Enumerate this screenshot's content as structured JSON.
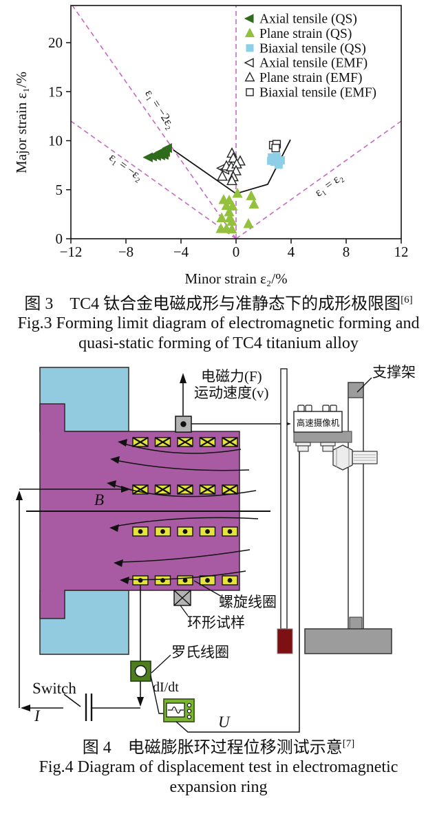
{
  "fig3": {
    "chart_data": {
      "type": "scatter",
      "title": "",
      "xlabel": "Minor strain ε₂/%",
      "ylabel": "Major strain ε₁/%",
      "xlim": [
        -12,
        12
      ],
      "ylim": [
        0,
        23.8
      ],
      "xticks": [
        -12,
        -8,
        -4,
        0,
        4,
        8,
        12
      ],
      "yticks": [
        0,
        5,
        10,
        15,
        20
      ],
      "grid": false,
      "legend_position": "top-right",
      "guide_color": "#c468c0",
      "line_color": "#111111",
      "flc_line": [
        [
          -4.55,
          9.05
        ],
        [
          0,
          4.6
        ],
        [
          2.3,
          5.55
        ],
        [
          3.95,
          10.1
        ]
      ],
      "guide_lines": [
        {
          "from": [
            0,
            0
          ],
          "to": [
            -11.9,
            23.8
          ]
        },
        {
          "from": [
            0,
            0
          ],
          "to": [
            -12,
            12
          ]
        },
        {
          "from": [
            0,
            0
          ],
          "to": [
            0,
            23.8
          ]
        },
        {
          "from": [
            0,
            0
          ],
          "to": [
            12,
            12
          ]
        }
      ],
      "annotations": [
        {
          "text": "ε₁ = −2ε₂",
          "x": -5.75,
          "y": 13.0,
          "rot": 57
        },
        {
          "text": "ε₁ = −ε₂",
          "x": -8.15,
          "y": 7.0,
          "rot": 36
        },
        {
          "text": "ε₁ = ε₂",
          "x": 6.9,
          "y": 5.2,
          "rot": -36
        }
      ],
      "series": [
        {
          "name": "Axial tensile (QS)",
          "marker": "tri-left",
          "fill": "#2f6b1d",
          "open": false,
          "points": [
            [
              -6.35,
              8.3
            ],
            [
              -6.05,
              8.4
            ],
            [
              -5.75,
              8.45
            ],
            [
              -5.45,
              8.5
            ],
            [
              -5.2,
              8.55
            ],
            [
              -5.45,
              8.85
            ],
            [
              -5.1,
              8.85
            ],
            [
              -5.15,
              9.0
            ],
            [
              -4.95,
              9.25
            ]
          ]
        },
        {
          "name": "Plane strain (QS)",
          "marker": "tri-up",
          "fill": "#94c13d",
          "open": false,
          "points": [
            [
              0.1,
              4.6
            ],
            [
              -0.9,
              3.95
            ],
            [
              -0.5,
              3.9
            ],
            [
              -0.7,
              3.35
            ],
            [
              -0.25,
              3.3
            ],
            [
              -0.5,
              2.7
            ],
            [
              -1.05,
              2.1
            ],
            [
              -0.45,
              2.1
            ],
            [
              -0.3,
              1.75
            ],
            [
              -1.1,
              1.0
            ],
            [
              -0.7,
              1.0
            ],
            [
              -0.3,
              0.95
            ],
            [
              1.3,
              3.5
            ],
            [
              0.9,
              1.5
            ],
            [
              1.1,
              4.35
            ]
          ]
        },
        {
          "name": "Biaxial tensile (QS)",
          "marker": "square",
          "fill": "#8ecfe8",
          "open": false,
          "points": [
            [
              2.6,
              8.3
            ],
            [
              2.95,
              8.35
            ],
            [
              3.25,
              8.0
            ],
            [
              2.8,
              7.85
            ],
            [
              3.1,
              7.55
            ],
            [
              2.55,
              7.95
            ]
          ]
        },
        {
          "name": "Axial tensile (EMF)",
          "marker": "tri-left",
          "fill": "#ffffff",
          "open": true,
          "points": [
            [
              -1.0,
              7.2
            ],
            [
              -0.8,
              7.05
            ]
          ]
        },
        {
          "name": "Plane strain (EMF)",
          "marker": "tri-up",
          "fill": "#ffffff",
          "open": true,
          "points": [
            [
              -0.3,
              8.7
            ],
            [
              -0.2,
              8.2
            ],
            [
              0.3,
              7.9
            ],
            [
              -0.7,
              7.4
            ],
            [
              -0.35,
              7.3
            ],
            [
              0.05,
              7.6
            ],
            [
              0.0,
              6.9
            ],
            [
              -1.0,
              6.35
            ],
            [
              -0.2,
              6.3
            ],
            [
              -0.3,
              5.9
            ]
          ]
        },
        {
          "name": "Biaxial tensile (EMF)",
          "marker": "square",
          "fill": "#ffffff",
          "open": true,
          "points": [
            [
              2.7,
              9.55
            ],
            [
              2.95,
              9.65
            ],
            [
              2.88,
              9.25
            ]
          ]
        }
      ]
    },
    "caption_zh": "图 3　TC4 钛合金电磁成形与准静态下的成形极限图",
    "caption_zh_sup": "[6]",
    "caption_en_1": "Fig.3 Forming limit diagram of electromagnetic forming and",
    "caption_en_2": "quasi-static forming of TC4 titanium alloy"
  },
  "fig4": {
    "labels": {
      "force": "电磁力(F)",
      "speed": "运动速度(v)",
      "b_field": "B",
      "support": "支撑架",
      "camera": "高速摄像机",
      "coil": "螺旋线圈",
      "specimen": "环形试样",
      "rogowski": "罗氏线圈",
      "switch": "Switch",
      "current": "I",
      "didt": "dI/dt",
      "voltage": "U"
    },
    "colors": {
      "body": "#a85ba3",
      "insulator": "#92cadf",
      "coil": "#e4e43b",
      "rogowski": "#4d7d1f",
      "scope": "#7ab62e",
      "marker_red": "#7d1013",
      "metal": "#9c9c9c",
      "marker_gray": "#b3b3b3"
    },
    "caption_zh": "图 4　电磁膨胀环过程位移测试示意",
    "caption_zh_sup": "[7]",
    "caption_en_1": "Fig.4 Diagram of displacement test in electromagnetic",
    "caption_en_2": "expansion ring"
  }
}
